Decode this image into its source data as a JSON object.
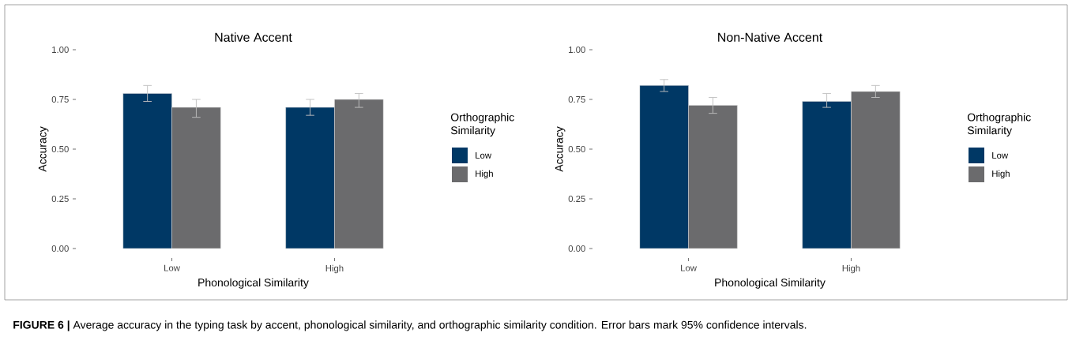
{
  "chart_data": [
    {
      "type": "bar",
      "title": "Native Accent",
      "xlabel": "Phonological Similarity",
      "ylabel": "Accuracy",
      "legend_title": "Orthographic Similarity",
      "legend": "right",
      "categories": [
        "Low",
        "High"
      ],
      "series": [
        {
          "name": "Low",
          "color": "#003865",
          "values": [
            0.78,
            0.71
          ],
          "errors": [
            [
              0.74,
              0.82
            ],
            [
              0.67,
              0.75
            ]
          ]
        },
        {
          "name": "High",
          "color": "#6b6b6d",
          "values": [
            0.71,
            0.75
          ],
          "errors": [
            [
              0.66,
              0.75
            ],
            [
              0.71,
              0.78
            ]
          ]
        }
      ],
      "ylim": [
        0,
        1
      ],
      "yticks": [
        {
          "value": 0,
          "label": "0.00"
        },
        {
          "value": 0.25,
          "label": "0.25"
        },
        {
          "value": 0.5,
          "label": "0.50"
        },
        {
          "value": 0.75,
          "label": "0.75"
        },
        {
          "value": 1,
          "label": "1.00"
        }
      ],
      "grid": false,
      "annotations": [
        "**FIGURE 6 |** Average accuracy in the typing task by accent, phonological similarity, and orthographic similarity condition. Error bars mark 95% confidence intervals."
      ]
    },
    {
      "type": "bar",
      "title": "Non-Native Accent",
      "xlabel": "Phonological Similarity",
      "ylabel": "Accuracy",
      "legend_title": "Orthographic Similarity",
      "legend": "right",
      "categories": [
        "Low",
        "High"
      ],
      "series": [
        {
          "name": "Low",
          "color": "#003865",
          "values": [
            0.82,
            0.74
          ],
          "errors": [
            [
              0.79,
              0.85
            ],
            [
              0.71,
              0.78
            ]
          ]
        },
        {
          "name": "High",
          "color": "#6b6b6d",
          "values": [
            0.72,
            0.79
          ],
          "errors": [
            [
              0.68,
              0.76
            ],
            [
              0.76,
              0.82
            ]
          ]
        }
      ],
      "ylim": [
        0,
        1
      ],
      "yticks": [
        {
          "value": 0,
          "label": "0.00"
        },
        {
          "value": 0.25,
          "label": "0.25"
        },
        {
          "value": 0.5,
          "label": "0.50"
        },
        {
          "value": 0.75,
          "label": "0.75"
        },
        {
          "value": 1,
          "label": "1.00"
        }
      ],
      "grid": false
    }
  ]
}
